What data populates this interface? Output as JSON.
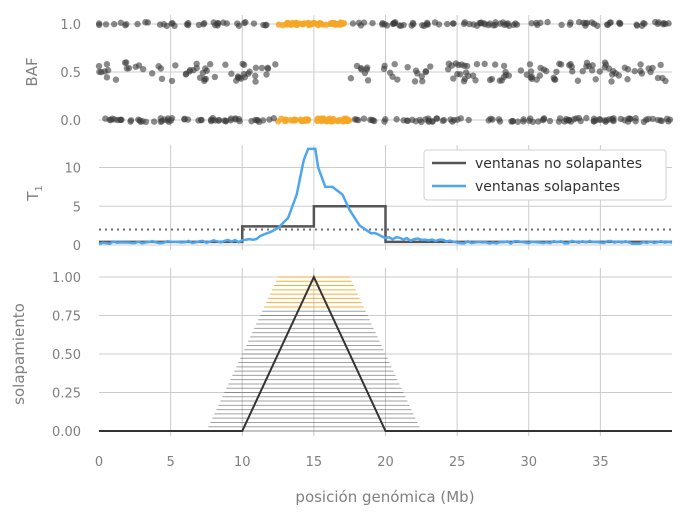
{
  "colors": {
    "grey_points": "#3c3c3c",
    "orange_points": "#f5a623",
    "nonoverlap_line": "#555555",
    "overlap_line": "#4da6ee",
    "threshold": "#707070",
    "grid": "#cccccc",
    "tick_text": "#808080"
  },
  "xlabel": "posición genómica (Mb)",
  "chart_data": [
    {
      "panel": "baf",
      "type": "scatter",
      "ylabel": "BAF",
      "xlim": [
        0,
        40
      ],
      "ylim": [
        -0.05,
        1.05
      ],
      "yticks": [
        "1.0",
        "0.5",
        "0.0"
      ],
      "ytick_values": [
        1.0,
        0.5,
        0.0
      ],
      "highlight_region": [
        12.5,
        17.5
      ],
      "point_description": "dense genotype points at 0, ~0.5 and 1.0; orange points in highlighted region show no heterozygous band"
    },
    {
      "panel": "t1",
      "type": "line",
      "ylabel": "T1",
      "xlim": [
        0,
        40
      ],
      "ylim": [
        0,
        13
      ],
      "yticks": [
        "10",
        "5",
        "0"
      ],
      "ytick_values": [
        10,
        5,
        0
      ],
      "threshold": 2,
      "grid": true,
      "legend_position": "top-right",
      "series": [
        {
          "name": "ventanas no solapantes",
          "x": [
            0,
            10,
            10,
            15,
            15,
            20,
            20,
            40
          ],
          "y": [
            0.4,
            0.4,
            2.4,
            2.4,
            5.0,
            5.0,
            0.4,
            0.4
          ]
        },
        {
          "name": "ventanas solapantes",
          "x": [
            0,
            5,
            9.5,
            10.5,
            11.5,
            12.5,
            13.2,
            13.8,
            14.3,
            14.6,
            15.1,
            15.3,
            15.8,
            16.3,
            17.0,
            17.5,
            18.2,
            19.0,
            20.0,
            21.0,
            25,
            30,
            35,
            40
          ],
          "y": [
            0.3,
            0.4,
            0.5,
            0.6,
            1.2,
            2.2,
            3.5,
            6.5,
            11.0,
            12.4,
            12.4,
            10.0,
            7.5,
            7.5,
            6.5,
            4.5,
            2.5,
            1.5,
            1.0,
            0.8,
            0.4,
            0.3,
            0.4,
            0.3
          ]
        }
      ]
    },
    {
      "panel": "overlap",
      "type": "line",
      "ylabel": "solapamiento",
      "xlim": [
        0,
        40
      ],
      "ylim": [
        0,
        1
      ],
      "yticks": [
        "1.00",
        "0.75",
        "0.50",
        "0.25",
        "0.00"
      ],
      "ytick_values": [
        1.0,
        0.75,
        0.5,
        0.25,
        0.0
      ],
      "xticks": [
        "0",
        "5",
        "10",
        "15",
        "20",
        "25",
        "30",
        "35"
      ],
      "xtick_values": [
        0,
        5,
        10,
        15,
        20,
        25,
        30,
        35
      ],
      "series": [
        {
          "name": "",
          "x": [
            0,
            10,
            15,
            20,
            40
          ],
          "y": [
            0,
            0,
            1,
            0,
            0
          ]
        }
      ],
      "window_bands": {
        "window_width": 5,
        "shift_range": [
          -2.5,
          2.5
        ],
        "highlight_threshold": 0.8
      }
    }
  ]
}
